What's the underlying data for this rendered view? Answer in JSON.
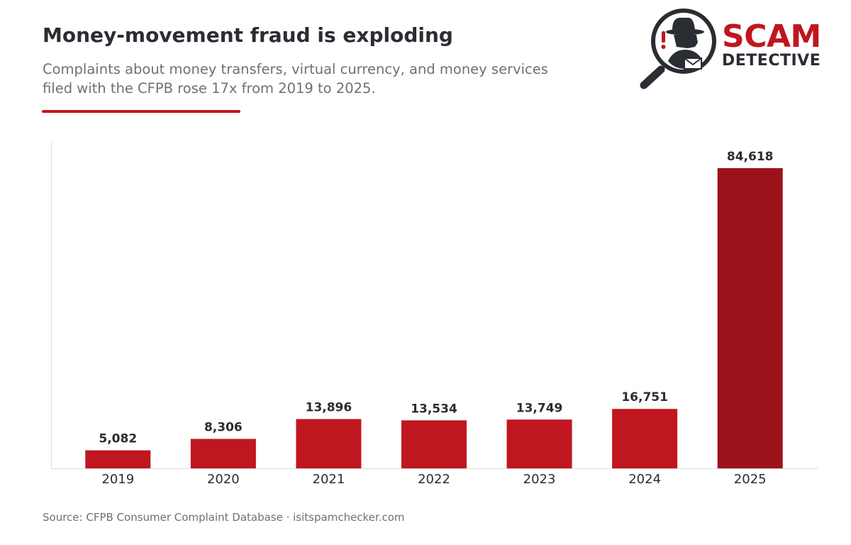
{
  "header": {
    "title": "Money-movement fraud is exploding",
    "subtitle_line1": "Complaints about money transfers, virtual currency, and money services",
    "subtitle_line2": "filed with the CFPB rose 17x from 2019 to 2025."
  },
  "logo": {
    "word1": "SCAM",
    "word2": "DETECTIVE",
    "icon": "magnifier-spy-icon",
    "exclamation": "!"
  },
  "colors": {
    "accent": "#c0161f",
    "highlight_bar": "#9c121a",
    "dark_text": "#2a2d33",
    "muted_text": "#6e7076",
    "axis": "#dcdcdc"
  },
  "chart_data": {
    "type": "bar",
    "categories": [
      "2019",
      "2020",
      "2021",
      "2022",
      "2023",
      "2024",
      "2025"
    ],
    "values": [
      5082,
      8306,
      13896,
      13534,
      13749,
      16751,
      84618
    ],
    "value_labels": [
      "5,082",
      "8,306",
      "13,896",
      "13,534",
      "13,749",
      "16,751",
      "84,618"
    ],
    "highlight_category": "2025",
    "ylim": [
      0,
      100000
    ],
    "grid": false,
    "legend": "none"
  },
  "footer": {
    "source": "Source: CFPB Consumer Complaint Database  ·  isitspamchecker.com"
  }
}
